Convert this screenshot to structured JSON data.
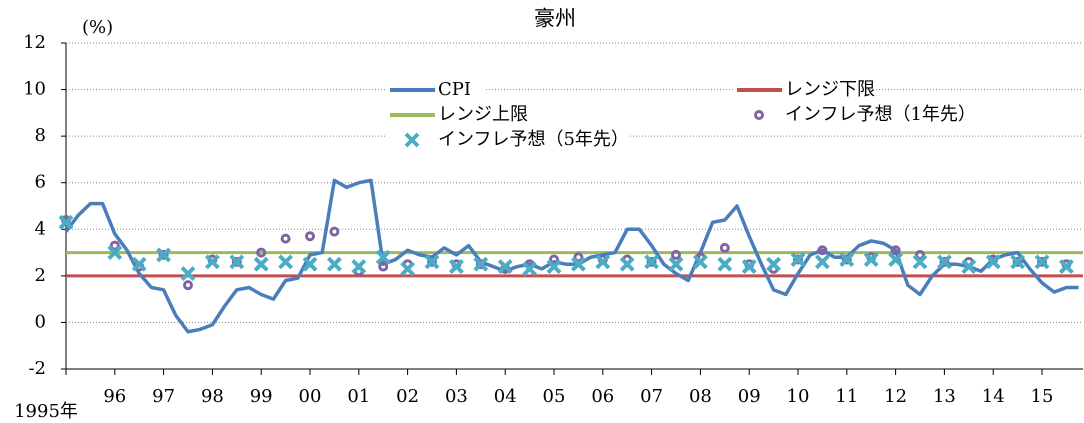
{
  "chart_data": {
    "type": "line",
    "title": "豪州",
    "y_label": "(%)",
    "xlim": [
      1995,
      2015.84
    ],
    "ylim": [
      -2,
      12
    ],
    "yticks": [
      -2,
      0,
      2,
      4,
      6,
      8,
      10,
      12
    ],
    "xticks": [
      {
        "value": 1995,
        "label": "1995年"
      },
      {
        "value": 1996,
        "label": "96"
      },
      {
        "value": 1997,
        "label": "97"
      },
      {
        "value": 1998,
        "label": "98"
      },
      {
        "value": 1999,
        "label": "99"
      },
      {
        "value": 2000,
        "label": "00"
      },
      {
        "value": 2001,
        "label": "01"
      },
      {
        "value": 2002,
        "label": "02"
      },
      {
        "value": 2003,
        "label": "03"
      },
      {
        "value": 2004,
        "label": "04"
      },
      {
        "value": 2005,
        "label": "05"
      },
      {
        "value": 2006,
        "label": "06"
      },
      {
        "value": 2007,
        "label": "07"
      },
      {
        "value": 2008,
        "label": "08"
      },
      {
        "value": 2009,
        "label": "09"
      },
      {
        "value": 2010,
        "label": "10"
      },
      {
        "value": 2011,
        "label": "11"
      },
      {
        "value": 2012,
        "label": "12"
      },
      {
        "value": 2013,
        "label": "13"
      },
      {
        "value": 2014,
        "label": "14"
      },
      {
        "value": 2015,
        "label": "15"
      }
    ],
    "grid": true,
    "legend": "top",
    "series": [
      {
        "name": "CPI",
        "type": "line",
        "color": "#4a7ebb",
        "x": [
          1995,
          1995.25,
          1995.5,
          1995.75,
          1996,
          1996.25,
          1996.5,
          1996.75,
          1997,
          1997.25,
          1997.5,
          1997.75,
          1998,
          1998.25,
          1998.5,
          1998.75,
          1999,
          1999.25,
          1999.5,
          1999.75,
          2000,
          2000.25,
          2000.5,
          2000.75,
          2001,
          2001.25,
          2001.5,
          2001.75,
          2002,
          2002.25,
          2002.5,
          2002.75,
          2003,
          2003.25,
          2003.5,
          2003.75,
          2004,
          2004.25,
          2004.5,
          2004.75,
          2005,
          2005.25,
          2005.5,
          2005.75,
          2006,
          2006.25,
          2006.5,
          2006.75,
          2007,
          2007.25,
          2007.5,
          2007.75,
          2008,
          2008.25,
          2008.5,
          2008.75,
          2009,
          2009.25,
          2009.5,
          2009.75,
          2010,
          2010.25,
          2010.5,
          2010.75,
          2011,
          2011.25,
          2011.5,
          2011.75,
          2012,
          2012.25,
          2012.5,
          2012.75,
          2013,
          2013.25,
          2013.5,
          2013.75,
          2014,
          2014.25,
          2014.5,
          2014.75,
          2015,
          2015.25,
          2015.5,
          2015.75
        ],
        "values": [
          3.9,
          4.6,
          5.1,
          5.1,
          3.8,
          3.1,
          2.1,
          1.5,
          1.4,
          0.3,
          -0.4,
          -0.3,
          -0.1,
          0.7,
          1.4,
          1.5,
          1.2,
          1.0,
          1.8,
          1.9,
          2.9,
          3.0,
          6.1,
          5.8,
          6.0,
          6.1,
          2.5,
          2.7,
          3.1,
          2.9,
          2.8,
          3.2,
          2.9,
          3.3,
          2.6,
          2.4,
          2.2,
          2.4,
          2.5,
          2.3,
          2.6,
          2.5,
          2.5,
          2.8,
          2.9,
          3.0,
          4.0,
          4.0,
          3.3,
          2.5,
          2.1,
          1.8,
          3.0,
          4.3,
          4.4,
          5.0,
          3.7,
          2.5,
          1.4,
          1.2,
          2.1,
          2.9,
          3.1,
          2.8,
          2.8,
          3.3,
          3.5,
          3.4,
          3.1,
          1.6,
          1.2,
          2.0,
          2.5,
          2.5,
          2.4,
          2.2,
          2.7,
          2.9,
          3.0,
          2.3,
          1.7,
          1.3,
          1.5,
          1.5
        ]
      },
      {
        "name": "レンジ下限",
        "type": "hline",
        "color": "#c0504d",
        "value": 2
      },
      {
        "name": "レンジ上限",
        "type": "hline",
        "color": "#9bbb59",
        "value": 3
      },
      {
        "name": "インフレ予想（1年先）",
        "type": "scatter",
        "marker": "circle",
        "color": "#8064a2",
        "x": [
          1995,
          1996,
          1996.5,
          1997,
          1997.5,
          1998,
          1998.5,
          1999,
          1999.5,
          2000,
          2000.5,
          2001,
          2001.5,
          2002,
          2002.5,
          2003,
          2003.5,
          2004,
          2004.5,
          2005,
          2005.5,
          2006,
          2006.5,
          2007,
          2007.5,
          2008,
          2008.5,
          2009,
          2009.5,
          2010,
          2010.5,
          2011,
          2011.5,
          2012,
          2012.5,
          2013,
          2013.5,
          2014,
          2014.5,
          2015,
          2015.5
        ],
        "values": [
          4.4,
          3.3,
          2.4,
          2.9,
          1.6,
          2.7,
          2.6,
          3.0,
          3.6,
          3.7,
          3.9,
          2.2,
          2.4,
          2.5,
          2.6,
          2.5,
          2.5,
          2.3,
          2.5,
          2.7,
          2.8,
          2.7,
          2.7,
          2.6,
          2.9,
          2.8,
          3.2,
          2.5,
          2.3,
          2.7,
          3.1,
          2.7,
          2.8,
          3.1,
          2.9,
          2.6,
          2.6,
          2.7,
          2.6,
          2.6,
          2.5
        ]
      },
      {
        "name": "インフレ予想（5年先）",
        "type": "scatter",
        "marker": "x",
        "color": "#4bacc6",
        "x": [
          1995,
          1996,
          1996.5,
          1997,
          1997.5,
          1998,
          1998.5,
          1999,
          1999.5,
          2000,
          2000.5,
          2001,
          2001.5,
          2002,
          2002.5,
          2003,
          2003.5,
          2004,
          2004.5,
          2005,
          2005.5,
          2006,
          2006.5,
          2007,
          2007.5,
          2008,
          2008.5,
          2009,
          2009.5,
          2010,
          2010.5,
          2011,
          2011.5,
          2012,
          2012.5,
          2013,
          2013.5,
          2014,
          2014.5,
          2015,
          2015.5
        ],
        "values": [
          4.3,
          3.0,
          2.5,
          2.9,
          2.1,
          2.6,
          2.6,
          2.5,
          2.6,
          2.5,
          2.5,
          2.4,
          2.8,
          2.3,
          2.6,
          2.4,
          2.5,
          2.4,
          2.3,
          2.4,
          2.5,
          2.6,
          2.5,
          2.6,
          2.5,
          2.6,
          2.5,
          2.4,
          2.5,
          2.7,
          2.6,
          2.7,
          2.7,
          2.7,
          2.6,
          2.6,
          2.4,
          2.6,
          2.6,
          2.6,
          2.4
        ]
      }
    ]
  }
}
